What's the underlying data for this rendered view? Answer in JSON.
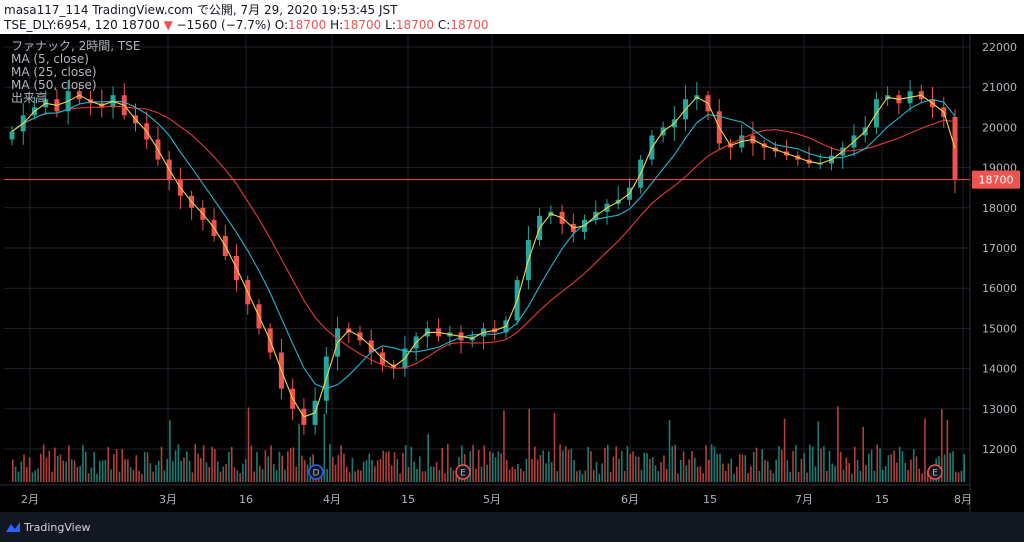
{
  "header": {
    "line1": "masa117_114 TradingView.com で公開, 7月 29, 2020 19:53:45 JST",
    "symbol": "TSE_DLY:6954, 120",
    "last": "18700",
    "arrow": "▼",
    "change": "−1560 (−7.7%)",
    "o_label": "O:",
    "o_val": "18700",
    "h_label": "H:",
    "h_val": "18700",
    "l_label": "L:",
    "l_val": "18700",
    "c_label": "C:",
    "c_val": "18700"
  },
  "legend": {
    "title": "ファナック, 2時間, TSE",
    "ma5": "MA (5, close)",
    "ma25": "MA (25, close)",
    "ma50": "MA (50, close)",
    "volume": "出来高"
  },
  "footer": {
    "brand": "TradingView"
  },
  "chart_data": {
    "type": "candlestick",
    "price_axis_ticks": [
      22000,
      21000,
      20000,
      19000,
      18000,
      17000,
      16000,
      15000,
      14000,
      13000,
      12000
    ],
    "time_axis_ticks": [
      "2月",
      "3月",
      "16",
      "4月",
      "15",
      "5月",
      "6月",
      "15",
      "7月",
      "15",
      "8月"
    ],
    "last_price_label": "18700",
    "ylim": [
      11500,
      22300
    ],
    "colors": {
      "up": "#26a69a",
      "down": "#ef5350",
      "ma5": "#f5d547",
      "ma25": "#1fb6d1",
      "ma50": "#e53935",
      "last_line": "#ef5350"
    },
    "events": [
      "D",
      "E",
      "E"
    ],
    "closes": [
      19900,
      20300,
      20500,
      20700,
      20400,
      20900,
      20700,
      20600,
      20500,
      20800,
      20300,
      20100,
      19700,
      19200,
      18700,
      18300,
      18000,
      17700,
      17300,
      16800,
      16200,
      15600,
      15000,
      14400,
      13500,
      13000,
      12600,
      13200,
      14300,
      15000,
      14900,
      14700,
      14400,
      14100,
      14000,
      14500,
      14800,
      15000,
      14800,
      14900,
      14700,
      14800,
      15000,
      14900,
      15200,
      16200,
      17200,
      17800,
      17900,
      17600,
      17400,
      17700,
      17900,
      18100,
      18200,
      18500,
      19200,
      19800,
      20000,
      20200,
      20700,
      20800,
      20400,
      19600,
      19500,
      19800,
      19600,
      19500,
      19400,
      19300,
      19200,
      19100,
      19100,
      19300,
      19500,
      19800,
      20000,
      20700,
      20800,
      20600,
      20900,
      20700,
      20500,
      20260,
      18700
    ]
  }
}
